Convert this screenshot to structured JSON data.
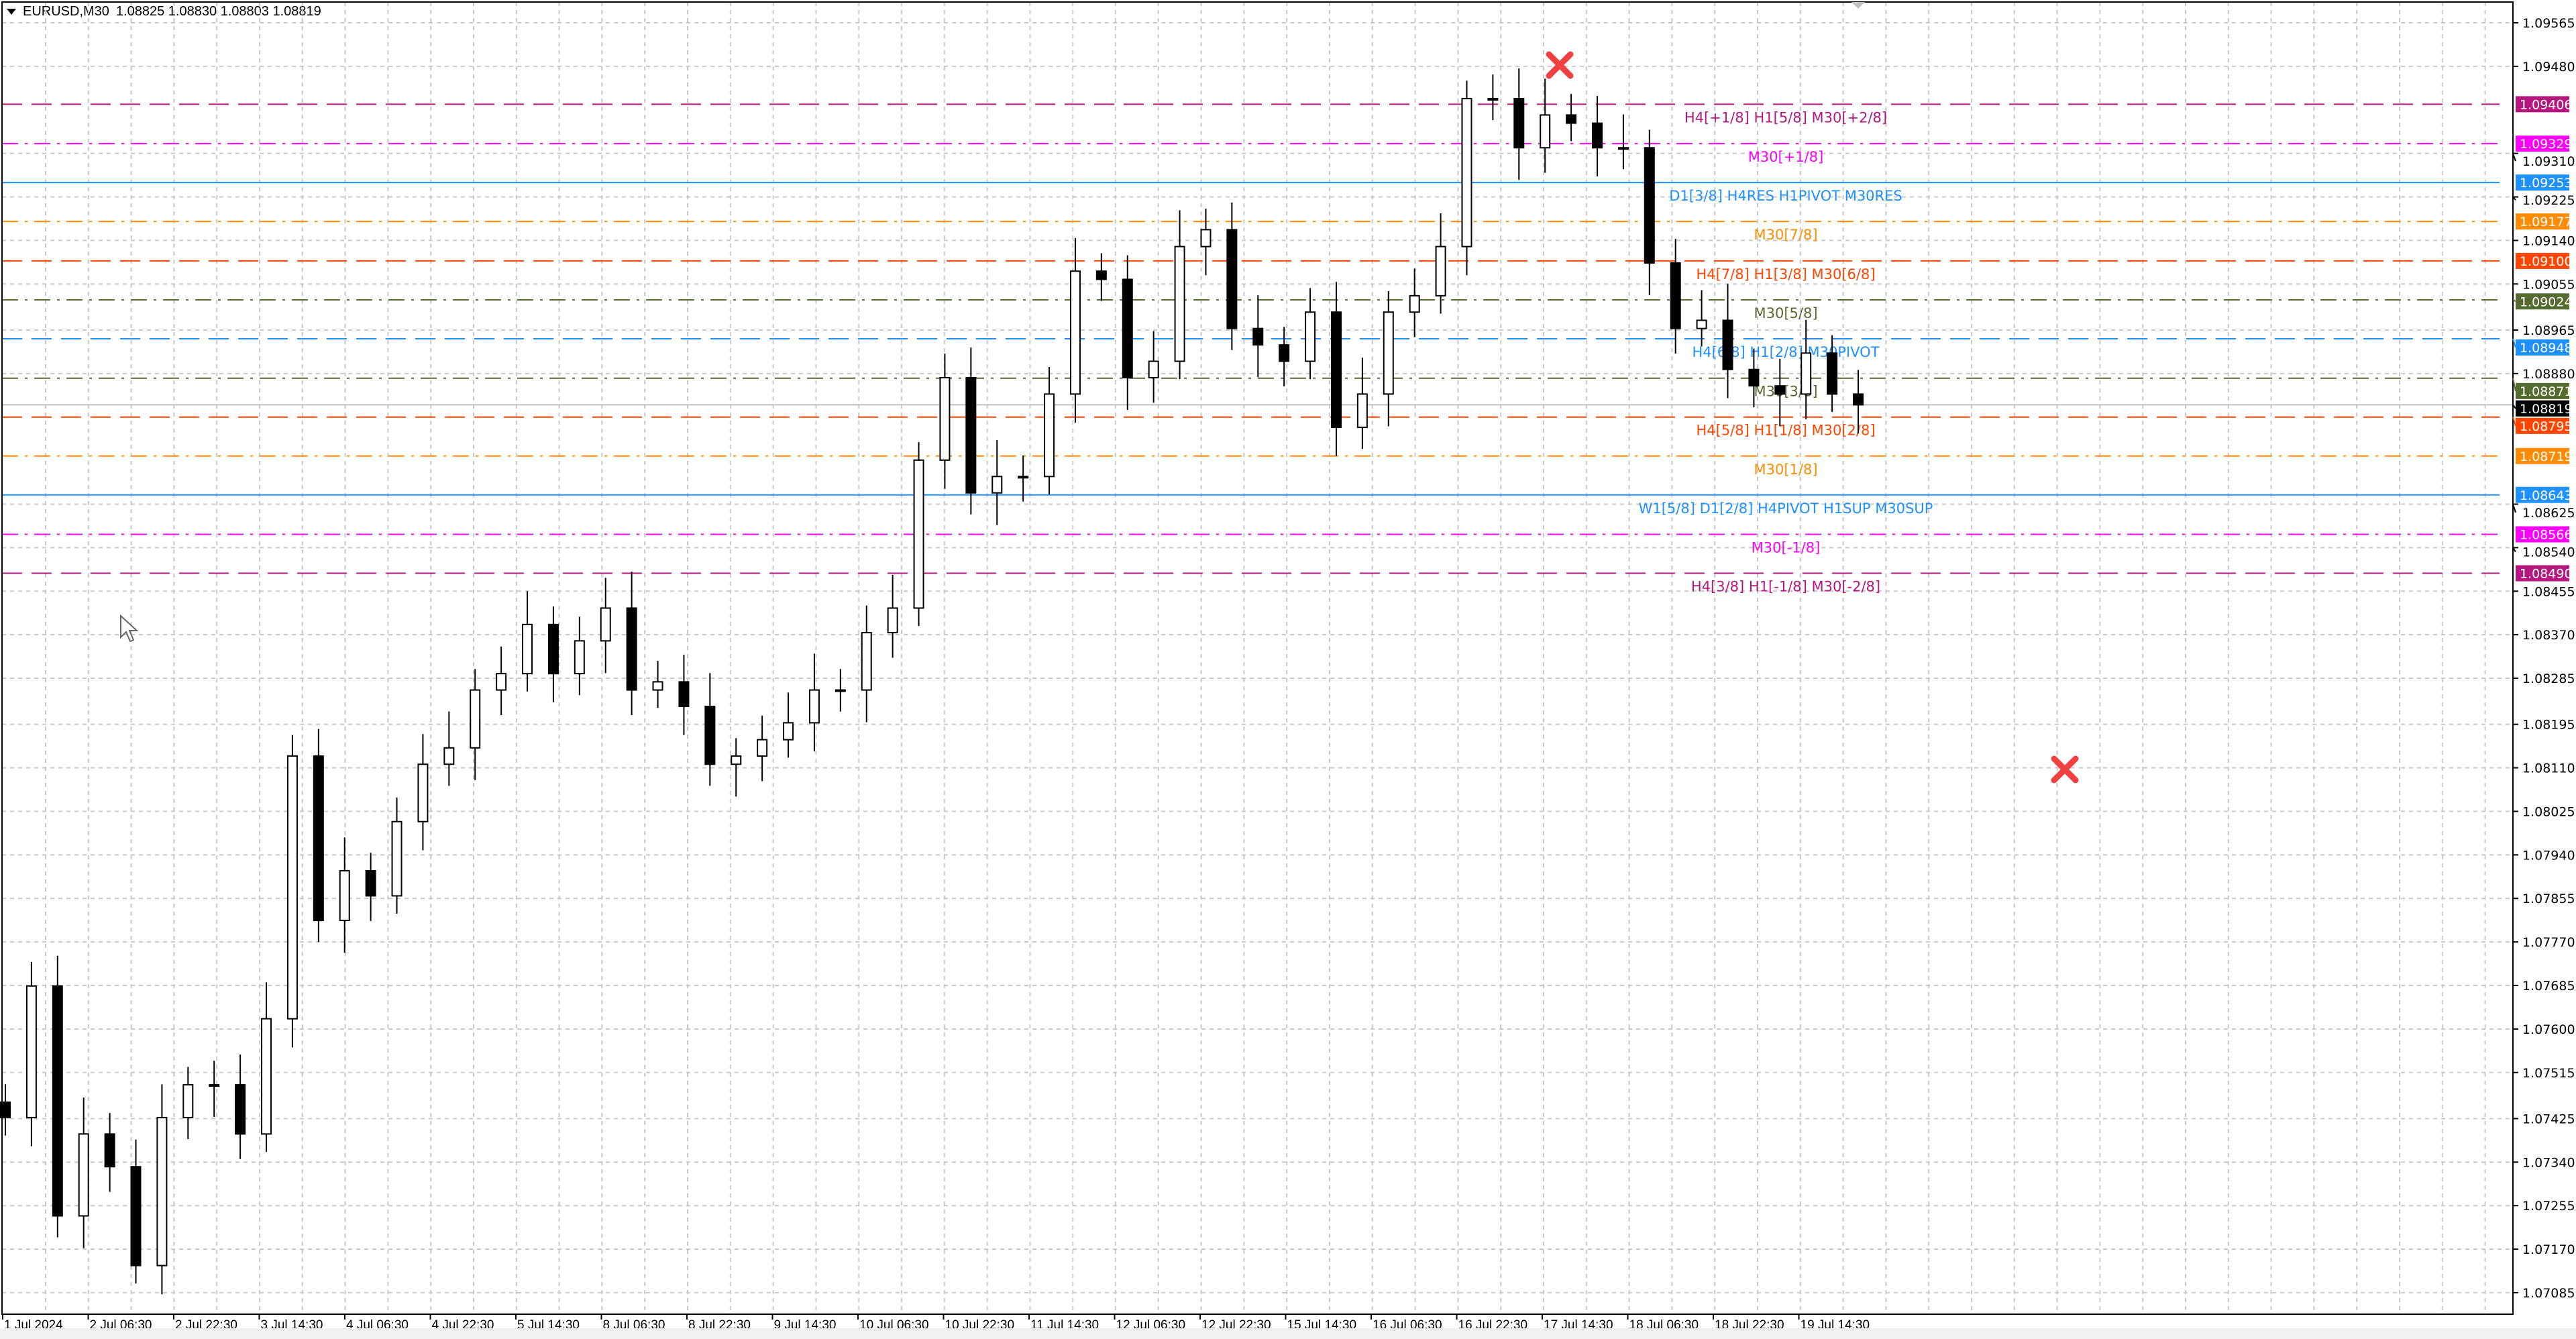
{
  "header": {
    "symbol": "EURUSD,M30",
    "ohlc": "1.08825 1.08830 1.08803 1.08819",
    "menu_icon": "triangle-down-icon"
  },
  "chart_data": {
    "type": "candlestick",
    "symbol": "EURUSD",
    "timeframe": "M30",
    "ylim": [
      1.0705,
      1.0961
    ],
    "grid": true,
    "y_ticks": [
      "1.09565",
      "1.09480",
      "1.09310",
      "1.09225",
      "1.09140",
      "1.09055",
      "1.08965",
      "1.08880",
      "1.08625",
      "1.08540",
      "1.08455",
      "1.08370",
      "1.08285",
      "1.08195",
      "1.08110",
      "1.08025",
      "1.07940",
      "1.07855",
      "1.07770",
      "1.07685",
      "1.07600",
      "1.07515",
      "1.07425",
      "1.07340",
      "1.07255",
      "1.07170",
      "1.07085"
    ],
    "x_ticks": [
      "1 Jul 2024",
      "2 Jul 06:30",
      "2 Jul 22:30",
      "3 Jul 14:30",
      "4 Jul 06:30",
      "4 Jul 22:30",
      "5 Jul 14:30",
      "8 Jul 06:30",
      "8 Jul 22:30",
      "9 Jul 14:30",
      "10 Jul 06:30",
      "10 Jul 22:30",
      "11 Jul 14:30",
      "12 Jul 06:30",
      "12 Jul 22:30",
      "15 Jul 14:30",
      "16 Jul 06:30",
      "16 Jul 22:30",
      "17 Jul 14:30",
      "18 Jul 06:30",
      "18 Jul 22:30",
      "19 Jul 14:30"
    ],
    "approx_closes": [
      1.07427,
      1.07684,
      1.07235,
      1.07395,
      1.07331,
      1.07138,
      1.07427,
      1.07491,
      1.07491,
      1.07395,
      1.0762,
      1.08133,
      1.07812,
      1.07909,
      1.0786,
      1.08005,
      1.08117,
      1.08149,
      1.08262,
      1.08294,
      1.0839,
      1.08294,
      1.08358,
      1.08422,
      1.08262,
      1.08278,
      1.0823,
      1.08117,
      1.08133,
      1.08165,
      1.08198,
      1.08262,
      1.08262,
      1.08374,
      1.08422,
      1.08711,
      1.08872,
      1.08647,
      1.08679,
      1.08679,
      1.0884,
      1.0908,
      1.09064,
      1.08872,
      1.08904,
      1.09128,
      1.09161,
      1.08968,
      1.08936,
      1.08904,
      1.09,
      1.08775,
      1.0884,
      1.09,
      1.09032,
      1.09128,
      1.09417,
      1.09417,
      1.09321,
      1.09385,
      1.09369,
      1.09321,
      1.09321,
      1.09096,
      1.08968,
      1.08984,
      1.08888,
      1.08856,
      1.0884,
      1.0892,
      1.0884,
      1.08819
    ],
    "current_price": {
      "value": 1.08819,
      "label": "1.08819",
      "color": "#000000"
    },
    "levels": [
      {
        "price": 1.09406,
        "label": "1.09406",
        "text": "H4[+1/8] H1[5/8] M30[+2/8]",
        "color": "#b5177f",
        "style": "dash"
      },
      {
        "price": 1.09329,
        "label": "1.09329",
        "text": "M30[+1/8]",
        "color": "#ff00ff",
        "style": "dashdot"
      },
      {
        "price": 1.09253,
        "label": "1.09253",
        "text": "D1[3/8] H4RES H1PIVOT M30RES",
        "color": "#1e90ff",
        "style": "solid"
      },
      {
        "price": 1.09177,
        "label": "1.09177",
        "text": "M30[7/8]",
        "color": "#ff8c00",
        "style": "dashdot"
      },
      {
        "price": 1.091,
        "label": "1.09100",
        "text": "H4[7/8] H1[3/8] M30[6/8]",
        "color": "#ff4500",
        "style": "dash"
      },
      {
        "price": 1.09024,
        "label": "1.09024",
        "text": "M30[5/8]",
        "color": "#556b2f",
        "style": "dashdot"
      },
      {
        "price": 1.08948,
        "label": "1.08948",
        "text": "H4[6/8] H1[2/8] M30PIVOT",
        "color": "#1e90ff",
        "style": "dash"
      },
      {
        "price": 1.08871,
        "label": "1.08871",
        "text": "M30[3/8]",
        "color": "#556b2f",
        "style": "dashdot"
      },
      {
        "price": 1.08795,
        "label": "1.08795",
        "text": "H4[5/8] H1[1/8] M30[2/8]",
        "color": "#ff4500",
        "style": "dash"
      },
      {
        "price": 1.08719,
        "label": "1.08719",
        "text": "M30[1/8]",
        "color": "#ff8c00",
        "style": "dashdot"
      },
      {
        "price": 1.08643,
        "label": "1.08643",
        "text": "W1[5/8] D1[2/8] H4PIVOT H1SUP M30SUP",
        "color": "#1e90ff",
        "style": "solid"
      },
      {
        "price": 1.08566,
        "label": "1.08566",
        "text": "M30[-1/8]",
        "color": "#ff00ff",
        "style": "dashdot"
      },
      {
        "price": 1.0849,
        "label": "1.08490",
        "text": "H4[3/8] H1[-1/8] M30[-2/8]",
        "color": "#b5177f",
        "style": "dash"
      }
    ],
    "markers": [
      {
        "type": "cross",
        "color": "#f04040",
        "price": 1.09485,
        "time": "17 Jul 06:30"
      }
    ]
  }
}
